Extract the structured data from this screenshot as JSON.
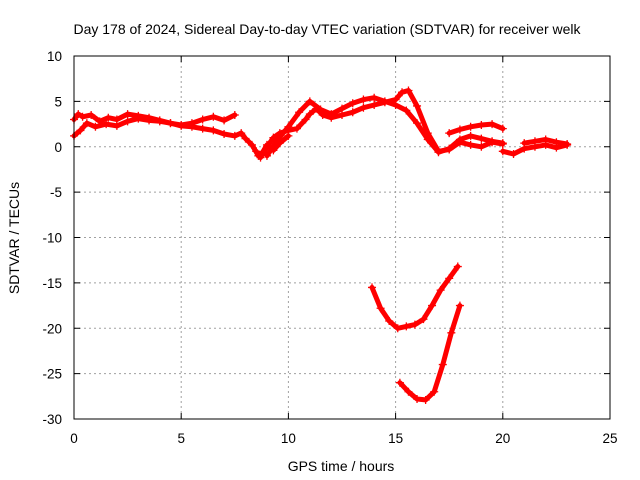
{
  "chart_data": {
    "type": "scatter",
    "title": "Day 178 of 2024, Sidereal Day-to-day VTEC variation (SDTVAR) for receiver welk",
    "xlabel": "GPS time / hours",
    "ylabel": "SDTVAR / TECUs",
    "xlim": [
      0,
      25
    ],
    "ylim": [
      -30,
      10
    ],
    "xticks": [
      "0",
      "5",
      "10",
      "15",
      "20",
      "25"
    ],
    "yticks": [
      "10",
      "5",
      "0",
      "-5",
      "-10",
      "-15",
      "-20",
      "-25",
      "-30"
    ],
    "grid": true,
    "marker": "plus",
    "color": "#ff0000",
    "series": [
      {
        "x": [
          0.0,
          0.2,
          0.4,
          0.8,
          1.2,
          1.6,
          2.0,
          2.5,
          3.0,
          3.5,
          4.0,
          4.5,
          5.0,
          5.5,
          6.0,
          6.5,
          7.0,
          7.5
        ],
        "y": [
          3.0,
          3.6,
          3.3,
          3.5,
          2.8,
          3.2,
          3.0,
          3.6,
          3.4,
          3.2,
          2.9,
          2.6,
          2.4,
          2.6,
          3.0,
          3.3,
          2.9,
          3.5
        ]
      },
      {
        "x": [
          0.0,
          0.3,
          0.6,
          1.0,
          1.5,
          2.0,
          2.5,
          3.0,
          3.5,
          4.0,
          4.5,
          5.0,
          5.5,
          6.0,
          6.5,
          7.0,
          7.5,
          7.8,
          8.0,
          8.3,
          8.6,
          8.8,
          9.0,
          9.3,
          9.6,
          10.0
        ],
        "y": [
          1.2,
          1.8,
          2.6,
          2.2,
          2.5,
          2.3,
          2.8,
          3.1,
          2.9,
          2.8,
          2.6,
          2.3,
          2.2,
          2.0,
          1.8,
          1.4,
          1.2,
          1.5,
          0.9,
          0.2,
          -1.0,
          -0.6,
          0.2,
          -0.4,
          0.4,
          1.2
        ]
      },
      {
        "x": [
          8.5,
          8.7,
          9.0,
          9.3,
          9.6,
          10.0,
          10.4,
          10.8,
          11.0,
          11.3,
          11.6,
          12.0,
          12.5,
          13.0,
          13.5,
          14.0,
          14.5,
          15.0,
          15.3,
          15.6,
          16.0,
          16.5,
          17.0,
          17.5,
          18.0,
          18.5,
          19.0,
          19.5,
          20.0
        ],
        "y": [
          -0.5,
          -1.2,
          0.0,
          1.0,
          1.5,
          1.8,
          2.0,
          3.0,
          3.6,
          4.2,
          3.5,
          3.2,
          3.5,
          3.8,
          4.3,
          4.6,
          4.9,
          5.2,
          6.0,
          6.2,
          4.5,
          1.5,
          -0.5,
          -0.3,
          0.5,
          0.2,
          0.0,
          0.5,
          0.3
        ]
      },
      {
        "x": [
          9.0,
          9.5,
          10.0,
          10.5,
          11.0,
          11.5,
          12.0,
          12.5,
          13.0,
          13.5,
          14.0,
          14.5,
          15.0,
          15.5,
          16.0,
          16.5,
          17.0,
          17.5,
          18.0,
          18.5,
          19.0,
          19.5,
          20.0
        ],
        "y": [
          -1.0,
          0.8,
          2.2,
          3.8,
          5.0,
          4.1,
          3.6,
          4.2,
          4.8,
          5.2,
          5.4,
          5.0,
          4.6,
          4.0,
          2.6,
          0.8,
          -0.6,
          -0.2,
          0.8,
          1.2,
          0.9,
          0.6,
          0.4
        ]
      },
      {
        "x": [
          17.5,
          18.0,
          18.5,
          19.0,
          19.5,
          20.0
        ],
        "y": [
          1.5,
          1.9,
          2.2,
          2.4,
          2.5,
          2.0
        ]
      },
      {
        "x": [
          20.0,
          20.5,
          21.0,
          21.5,
          22.0,
          22.5,
          23.0
        ],
        "y": [
          -0.5,
          -0.8,
          -0.2,
          0.0,
          0.2,
          -0.1,
          0.2
        ]
      },
      {
        "x": [
          21.0,
          21.5,
          22.0,
          22.5,
          23.0
        ],
        "y": [
          0.4,
          0.6,
          0.8,
          0.5,
          0.3
        ]
      },
      {
        "x": [
          13.9,
          14.3,
          14.7,
          15.1,
          15.5,
          15.9,
          16.3,
          16.7,
          17.1,
          17.5,
          17.9
        ],
        "y": [
          -15.5,
          -17.8,
          -19.2,
          -20.0,
          -19.8,
          -19.6,
          -19.0,
          -17.5,
          -15.8,
          -14.5,
          -13.2
        ]
      },
      {
        "x": [
          15.2,
          15.6,
          16.0,
          16.4,
          16.8,
          17.2,
          17.6,
          18.0
        ],
        "y": [
          -26.0,
          -27.0,
          -27.8,
          -27.9,
          -27.0,
          -24.0,
          -20.5,
          -17.5
        ]
      }
    ]
  }
}
